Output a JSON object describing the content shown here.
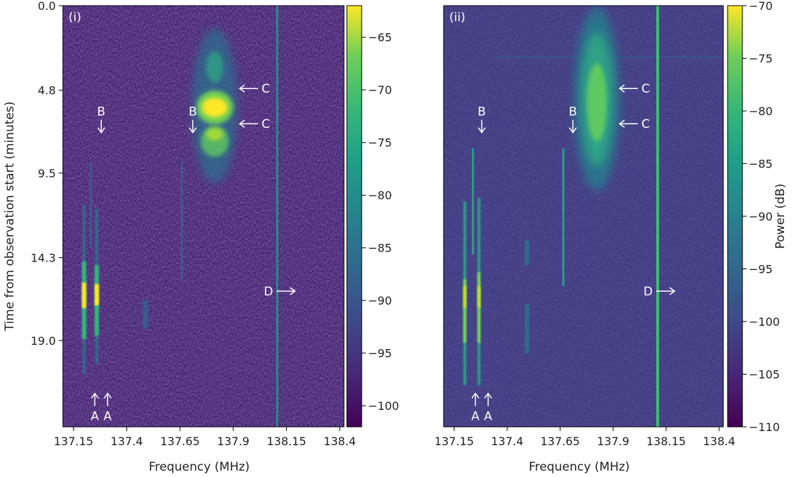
{
  "chart_data": [
    {
      "type": "heatmap",
      "panel_label": "(i)",
      "xlabel": "Frequency (MHz)",
      "ylabel": "Time from observation start (minutes)",
      "x_ticks": [
        "137.15",
        "137.4",
        "137.65",
        "137.9",
        "138.15",
        "138.4"
      ],
      "x_tick_values": [
        137.15,
        137.4,
        137.65,
        137.9,
        138.15,
        138.4
      ],
      "y_ticks": [
        "0.0",
        "4.8",
        "9.5",
        "14.3",
        "19.0"
      ],
      "y_tick_values": [
        0.0,
        4.8,
        9.5,
        14.3,
        19.0
      ],
      "xlim": [
        137.1,
        138.42
      ],
      "ylim": [
        23.9,
        0
      ],
      "colorbar": {
        "label": "",
        "ticks": [
          "−65",
          "−70",
          "−75",
          "−80",
          "−85",
          "−90",
          "−95",
          "−100"
        ],
        "tick_values": [
          -65,
          -70,
          -75,
          -80,
          -85,
          -90,
          -95,
          -100
        ],
        "range": [
          -102,
          -62
        ]
      },
      "annotations": [
        {
          "text": "A",
          "x": 137.25,
          "y": 22.0,
          "direction": "up"
        },
        {
          "text": "A",
          "x": 137.31,
          "y": 22.0,
          "direction": "up"
        },
        {
          "text": "B",
          "x": 137.28,
          "y": 7.2,
          "direction": "down"
        },
        {
          "text": "B",
          "x": 137.71,
          "y": 7.2,
          "direction": "down"
        },
        {
          "text": "C",
          "x": 137.93,
          "y": 4.7,
          "direction": "left"
        },
        {
          "text": "C",
          "x": 137.93,
          "y": 6.7,
          "direction": "left"
        },
        {
          "text": "D",
          "x": 138.19,
          "y": 16.2,
          "direction": "right"
        }
      ]
    },
    {
      "type": "heatmap",
      "panel_label": "(ii)",
      "xlabel": "Frequency (MHz)",
      "ylabel": "",
      "x_ticks": [
        "137.15",
        "137.4",
        "137.65",
        "137.9",
        "138.15",
        "138.4"
      ],
      "x_tick_values": [
        137.15,
        137.4,
        137.65,
        137.9,
        138.15,
        138.4
      ],
      "xlim": [
        137.1,
        138.42
      ],
      "ylim": [
        23.9,
        0
      ],
      "colorbar": {
        "label": "Power (dB)",
        "ticks": [
          "−70",
          "−75",
          "−80",
          "−85",
          "−90",
          "−95",
          "−100",
          "−105",
          "−110"
        ],
        "tick_values": [
          -70,
          -75,
          -80,
          -85,
          -90,
          -95,
          -100,
          -105,
          -110
        ],
        "range": [
          -110,
          -70
        ]
      },
      "annotations": [
        {
          "text": "A",
          "x": 137.25,
          "y": 22.0,
          "direction": "up"
        },
        {
          "text": "A",
          "x": 137.31,
          "y": 22.0,
          "direction": "up"
        },
        {
          "text": "B",
          "x": 137.28,
          "y": 7.2,
          "direction": "down"
        },
        {
          "text": "B",
          "x": 137.71,
          "y": 7.2,
          "direction": "down"
        },
        {
          "text": "C",
          "x": 137.93,
          "y": 4.7,
          "direction": "left"
        },
        {
          "text": "C",
          "x": 137.93,
          "y": 6.7,
          "direction": "left"
        },
        {
          "text": "D",
          "x": 138.19,
          "y": 16.2,
          "direction": "right"
        }
      ]
    }
  ]
}
